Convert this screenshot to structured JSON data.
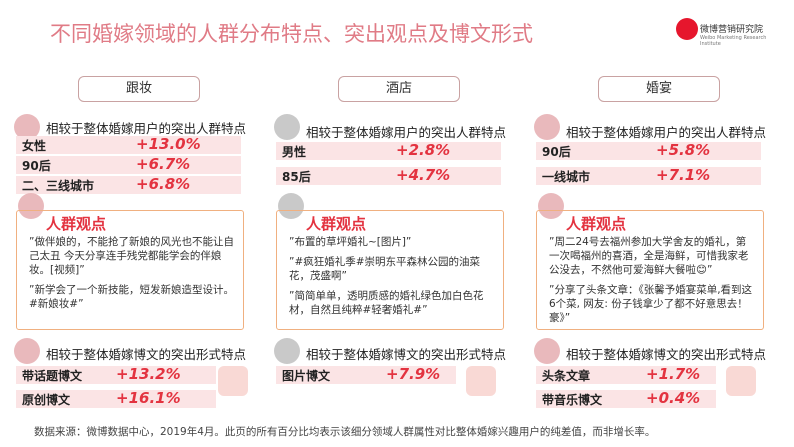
{
  "header": {
    "title": "不同婚嫁领域的人群分布特点、突出观点及博文形式",
    "logo": {
      "name": "微博营销研究院",
      "subtitle": "Weibo Marketing Research Institute"
    }
  },
  "columns": [
    {
      "name": "跟妆",
      "audience_heading": "相较于整体婚嫁用户的突出人群特点",
      "audience": [
        [
          "女性",
          "+13.0%"
        ],
        [
          "90后",
          "+6.7%"
        ],
        [
          "二、三线城市",
          "+6.8%"
        ]
      ],
      "opinion_heading": "人群观点",
      "quotes": [
        "”做伴娘的，不能抢了新娘的风光也不能让自己太丑 今天分享连手残党都能学会的伴娘妆。[视频]”",
        "”新学会了一个新技能，短发新娘造型设计。#新娘妆#”"
      ],
      "format_heading": "相较于整体婚嫁博文的突出形式特点",
      "formats": [
        [
          "带话题博文",
          "+13.2%"
        ],
        [
          "原创博文",
          "+16.1%"
        ]
      ]
    },
    {
      "name": "酒店",
      "audience_heading": "相较于整体婚嫁用户的突出人群特点",
      "audience": [
        [
          "男性",
          "+2.8%"
        ],
        [
          "85后",
          "+4.7%"
        ]
      ],
      "opinion_heading": "人群观点",
      "quotes": [
        "”布置的草坪婚礼~[图片]”",
        "”#疯狂婚礼季#崇明东平森林公园的油菜花，茂盛啊”",
        "”简简单单，透明质感的婚礼绿色加白色花材，自然且纯粹#轻奢婚礼#”"
      ],
      "format_heading": "相较于整体婚嫁博文的突出形式特点",
      "formats": [
        [
          "图片博文",
          "+7.9%"
        ]
      ]
    },
    {
      "name": "婚宴",
      "audience_heading": "相较于整体婚嫁用户的突出人群特点",
      "audience": [
        [
          "90后",
          "+5.8%"
        ],
        [
          "一线城市",
          "+7.1%"
        ]
      ],
      "opinion_heading": "人群观点",
      "quotes": [
        "”周二24号去福州参加大学舍友的婚礼，第一次喝福州的喜酒，全是海鲜，可惜我家老公没去，不然他可爱海鲜大餐啦😊”",
        "”分享了头条文章：《张馨予婚宴菜单,看到这6个菜, 网友: 份子钱拿少了都不好意思去！豪》”"
      ],
      "format_heading": "相较于整体婚嫁博文的突出形式特点",
      "formats": [
        [
          "头条文章",
          "+1.7%"
        ],
        [
          "带音乐博文",
          "+0.4%"
        ]
      ]
    }
  ],
  "footer": "数据来源：微博数据中心，2019年4月。此页的所有百分比均表示该细分领域人群属性对比整体婚嫁兴趣用户的纯差值，而非增长率。"
}
